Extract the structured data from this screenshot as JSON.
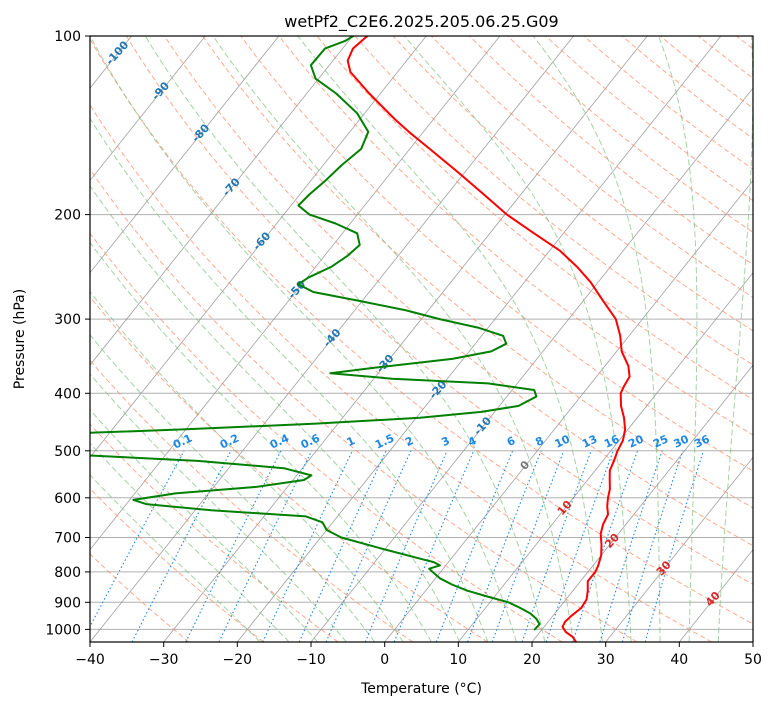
{
  "chart_data": {
    "type": "line",
    "subtype": "skew-T log-p diagram",
    "title": "wetPf2_C2E6.2025.205.06.25.G09",
    "xlabel": "Temperature (°C)",
    "ylabel": "Pressure (hPa)",
    "xlim": [
      -40,
      50
    ],
    "ylim": [
      1050,
      100
    ],
    "y_scale": "log",
    "grid": true,
    "x_ticks": [
      "−40",
      "−30",
      "−20",
      "−10",
      "0",
      "10",
      "20",
      "30",
      "40",
      "50"
    ],
    "y_ticks": [
      "100",
      "200",
      "300",
      "400",
      "500",
      "600",
      "700",
      "800",
      "900",
      "1000"
    ],
    "colors": {
      "temperature": "#ff0000",
      "dewpoint": "#008000",
      "isotherm": "#888888",
      "dry_adiabat": "#ff8c69",
      "moist_adiabat": "#7fbf7f",
      "mixing_ratio": "#1e88e5",
      "isotherm_label": "#1f77b4",
      "warm_isotherm_label": "#d62728"
    },
    "isotherm_labels_cold": [
      "-100",
      "-90",
      "-80",
      "-70",
      "-60",
      "-50",
      "-40",
      "-30",
      "-20",
      "-10"
    ],
    "isotherm_labels_warm": [
      "0",
      "10",
      "20",
      "30",
      "40"
    ],
    "mixing_ratio_labels": [
      "0.1",
      "0.2",
      "0.4",
      "0.6",
      "1",
      "1.5",
      "2",
      "3",
      "4",
      "6",
      "8",
      "10",
      "13",
      "16",
      "20",
      "25",
      "30",
      "36"
    ],
    "series": [
      {
        "key": "temperature",
        "points": [
          [
            1050,
            26
          ],
          [
            1030,
            25
          ],
          [
            1010,
            23.5
          ],
          [
            990,
            22.5
          ],
          [
            970,
            22.3
          ],
          [
            950,
            22.5
          ],
          [
            920,
            23
          ],
          [
            890,
            22.8
          ],
          [
            860,
            22
          ],
          [
            830,
            21
          ],
          [
            800,
            21
          ],
          [
            780,
            20.7
          ],
          [
            750,
            20
          ],
          [
            720,
            18.9
          ],
          [
            690,
            17.6
          ],
          [
            665,
            16.9
          ],
          [
            640,
            16.5
          ],
          [
            620,
            15.5
          ],
          [
            600,
            14.7
          ],
          [
            580,
            14
          ],
          [
            560,
            13
          ],
          [
            540,
            12
          ],
          [
            520,
            11.5
          ],
          [
            500,
            10.9
          ],
          [
            480,
            10.5
          ],
          [
            460,
            9.6
          ],
          [
            440,
            8.2
          ],
          [
            420,
            6.5
          ],
          [
            400,
            5.1
          ],
          [
            390,
            4.8
          ],
          [
            375,
            4.5
          ],
          [
            360,
            3.2
          ],
          [
            340,
            0.7
          ],
          [
            320,
            -1.2
          ],
          [
            300,
            -3.6
          ],
          [
            280,
            -7.2
          ],
          [
            260,
            -11
          ],
          [
            245,
            -14.5
          ],
          [
            230,
            -18.6
          ],
          [
            215,
            -24
          ],
          [
            200,
            -29.7
          ],
          [
            185,
            -35
          ],
          [
            170,
            -40.8
          ],
          [
            155,
            -47.3
          ],
          [
            145,
            -52
          ],
          [
            138,
            -55.3
          ],
          [
            125,
            -61.5
          ],
          [
            115,
            -66.4
          ],
          [
            110,
            -68
          ],
          [
            105,
            -68.6
          ],
          [
            100,
            -68
          ]
        ]
      },
      {
        "key": "dewpoint",
        "points": [
          [
            1000,
            19
          ],
          [
            980,
            19.1
          ],
          [
            960,
            18.1
          ],
          [
            940,
            16.7
          ],
          [
            920,
            14.7
          ],
          [
            900,
            12.5
          ],
          [
            880,
            9
          ],
          [
            860,
            5.6
          ],
          [
            840,
            2.9
          ],
          [
            820,
            0.6
          ],
          [
            800,
            -1.1
          ],
          [
            790,
            -1.9
          ],
          [
            780,
            -0.8
          ],
          [
            770,
            -2
          ],
          [
            760,
            -4.2
          ],
          [
            730,
            -10.7
          ],
          [
            700,
            -17.2
          ],
          [
            680,
            -20
          ],
          [
            660,
            -21.4
          ],
          [
            645,
            -24.3
          ],
          [
            630,
            -37.8
          ],
          [
            615,
            -47.3
          ],
          [
            605,
            -49.5
          ],
          [
            590,
            -44.5
          ],
          [
            575,
            -34.1
          ],
          [
            560,
            -28.5
          ],
          [
            550,
            -28
          ],
          [
            535,
            -32.5
          ],
          [
            520,
            -45
          ],
          [
            505,
            -66
          ],
          [
            500,
            -72
          ],
          [
            485,
            -74
          ],
          [
            470,
            -70
          ],
          [
            460,
            -50
          ],
          [
            450,
            -33
          ],
          [
            440,
            -19.5
          ],
          [
            430,
            -11.8
          ],
          [
            420,
            -7.4
          ],
          [
            405,
            -6
          ],
          [
            395,
            -7
          ],
          [
            385,
            -14
          ],
          [
            378,
            -27.5
          ],
          [
            370,
            -36.5
          ],
          [
            362,
            -31
          ],
          [
            350,
            -21.5
          ],
          [
            340,
            -17
          ],
          [
            330,
            -15.8
          ],
          [
            320,
            -17.1
          ],
          [
            310,
            -21.4
          ],
          [
            300,
            -27.5
          ],
          [
            290,
            -33
          ],
          [
            280,
            -40
          ],
          [
            270,
            -47.6
          ],
          [
            262,
            -50.5
          ],
          [
            255,
            -49.8
          ],
          [
            245,
            -47.9
          ],
          [
            235,
            -46.9
          ],
          [
            225,
            -46.4
          ],
          [
            215,
            -48
          ],
          [
            207,
            -52
          ],
          [
            200,
            -56.5
          ],
          [
            193,
            -59
          ],
          [
            185,
            -58.7
          ],
          [
            175,
            -58
          ],
          [
            165,
            -57.5
          ],
          [
            155,
            -56.6
          ],
          [
            145,
            -57.5
          ],
          [
            135,
            -61
          ],
          [
            125,
            -66
          ],
          [
            118,
            -70.4
          ],
          [
            112,
            -72.5
          ],
          [
            105,
            -72.4
          ],
          [
            102,
            -70.5
          ],
          [
            100,
            -69.9
          ]
        ]
      }
    ]
  }
}
